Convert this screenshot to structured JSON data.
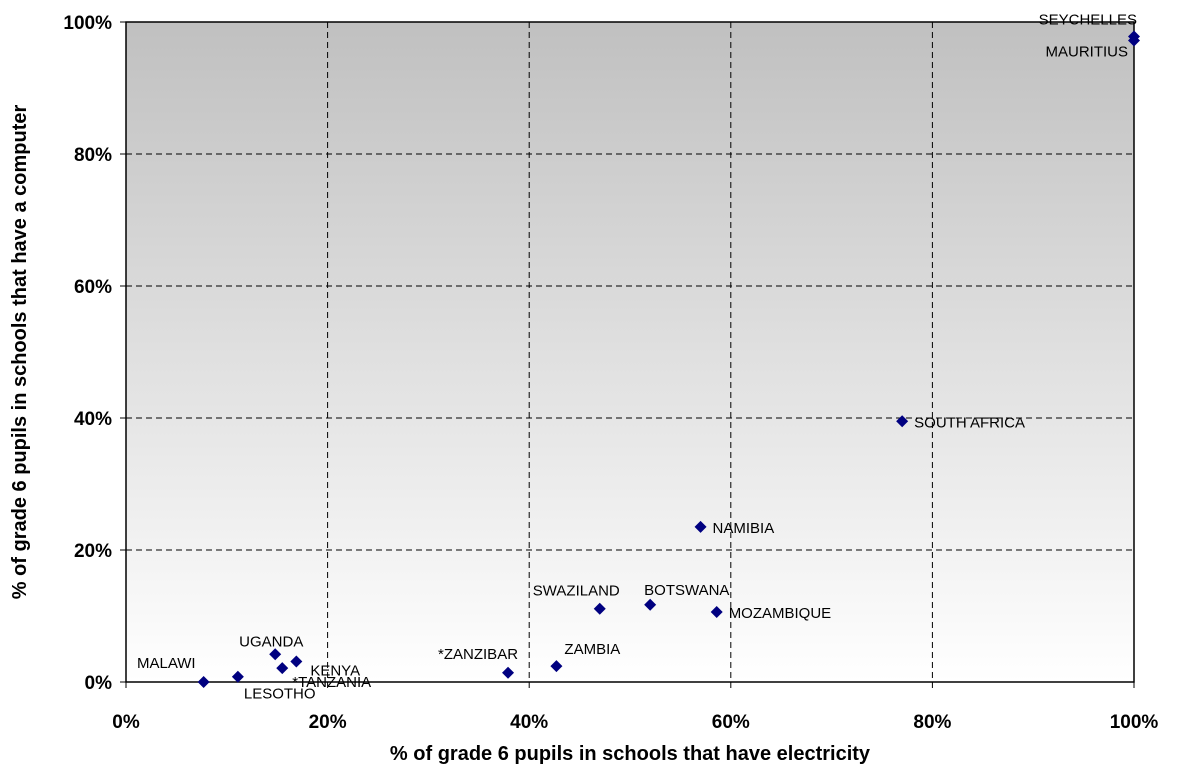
{
  "chart_data": {
    "type": "scatter",
    "title": "",
    "xlabel": "% of grade 6 pupils in schools that have electricity",
    "ylabel": "% of grade 6 pupils in schools that have a computer",
    "xlim": [
      0,
      100
    ],
    "ylim": [
      0,
      100
    ],
    "x_ticks": [
      "0%",
      "20%",
      "40%",
      "60%",
      "80%",
      "100%"
    ],
    "y_ticks": [
      "0%",
      "20%",
      "40%",
      "60%",
      "80%",
      "100%"
    ],
    "grid": true,
    "marker_color": "#000080",
    "background_gradient": [
      "#c0c0c0",
      "#ffffff"
    ],
    "points": [
      {
        "label": "SEYCHELLES",
        "x": 100,
        "y": 97.8
      },
      {
        "label": "MAURITIUS",
        "x": 100,
        "y": 97.2
      },
      {
        "label": "SOUTH AFRICA",
        "x": 77,
        "y": 39.5
      },
      {
        "label": "NAMIBIA",
        "x": 57,
        "y": 23.5
      },
      {
        "label": "BOTSWANA",
        "x": 52,
        "y": 11.7
      },
      {
        "label": "SWAZILAND",
        "x": 47,
        "y": 11.1
      },
      {
        "label": "MOZAMBIQUE",
        "x": 58.6,
        "y": 10.6
      },
      {
        "label": "ZAMBIA",
        "x": 42.7,
        "y": 2.4
      },
      {
        "label": "*ZANZIBAR",
        "x": 37.9,
        "y": 1.4
      },
      {
        "label": "UGANDA",
        "x": 14.8,
        "y": 4.2
      },
      {
        "label": "KENYA",
        "x": 16.9,
        "y": 3.1
      },
      {
        "label": "*TANZANIA",
        "x": 15.5,
        "y": 2.1
      },
      {
        "label": "LESOTHO",
        "x": 11.1,
        "y": 0.8
      },
      {
        "label": "MALAWI",
        "x": 7.7,
        "y": 0
      }
    ]
  }
}
